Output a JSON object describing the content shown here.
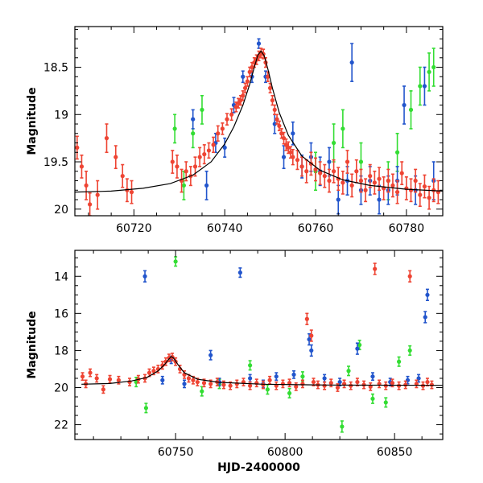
{
  "chart_data": [
    {
      "type": "scatter",
      "xlabel": "",
      "ylabel": "Magnitude",
      "xlim": [
        60707,
        60788
      ],
      "ylim": [
        20.07,
        18.07
      ],
      "y_inverted": true,
      "x_ticks": [
        60720,
        60740,
        60760,
        60780
      ],
      "y_ticks": [
        18.5,
        19,
        19.5,
        20
      ],
      "x_tick_labels": [
        "60720",
        "60740",
        "60760",
        "60780"
      ],
      "y_tick_labels": [
        "18.5",
        "19",
        "19.5",
        "20"
      ],
      "model": {
        "color": "#000000",
        "x": [
          60707,
          60715,
          60722,
          60728,
          60733,
          60737,
          60740,
          60742,
          60744,
          60745.5,
          60746.5,
          60747.3,
          60748,
          60748.7,
          60749.5,
          60750.5,
          60752,
          60754,
          60757,
          60761,
          60766,
          60772,
          60780,
          60788
        ],
        "y": [
          19.82,
          19.81,
          19.78,
          19.73,
          19.64,
          19.5,
          19.31,
          19.13,
          18.9,
          18.68,
          18.5,
          18.37,
          18.33,
          18.38,
          18.52,
          18.72,
          18.98,
          19.22,
          19.44,
          19.59,
          19.69,
          19.75,
          19.79,
          19.81
        ]
      },
      "series": [
        {
          "color": "#ee4433",
          "x": [
            60707.5,
            60708.5,
            60709.5,
            60710.3,
            60712,
            60714,
            60716,
            60717.5,
            60718.5,
            60719.5,
            60728.5,
            60729.5,
            60730.5,
            60731.5,
            60732.5,
            60733.5,
            60734.5,
            60735.5,
            60736.5,
            60737.5,
            60738.5,
            60739.5,
            60740.5,
            60741.5,
            60742.5,
            60743,
            60743.5,
            60744,
            60744.5,
            60745,
            60745.5,
            60746,
            60746.5,
            60747,
            60747.5,
            60748,
            60748.5,
            60749,
            60749.5,
            60750,
            60750.5,
            60751,
            60751.5,
            60752,
            60752.5,
            60753,
            60753.5,
            60754,
            60754.5,
            60755,
            60756,
            60757,
            60758,
            60759,
            60760,
            60761,
            60762,
            60763,
            60764,
            60765,
            60766,
            60767,
            60768,
            60769,
            60770,
            60771,
            60772,
            60773,
            60774,
            60775,
            60776,
            60777,
            60778,
            60779,
            60780,
            60781,
            60782,
            60783,
            60784,
            60785,
            60786,
            60787
          ],
          "y": [
            19.35,
            19.55,
            19.75,
            19.95,
            19.85,
            19.25,
            19.45,
            19.65,
            19.8,
            19.82,
            19.5,
            19.55,
            19.7,
            19.6,
            19.65,
            19.55,
            19.45,
            19.42,
            19.38,
            19.32,
            19.2,
            19.15,
            19.05,
            19.0,
            18.92,
            18.88,
            18.85,
            18.8,
            18.72,
            18.65,
            18.55,
            18.5,
            18.45,
            18.42,
            18.38,
            18.35,
            18.36,
            18.45,
            18.6,
            18.72,
            18.85,
            18.95,
            19.05,
            19.12,
            19.2,
            19.25,
            19.32,
            19.35,
            19.4,
            19.45,
            19.48,
            19.55,
            19.6,
            19.52,
            19.58,
            19.62,
            19.65,
            19.7,
            19.6,
            19.68,
            19.72,
            19.5,
            19.75,
            19.6,
            19.7,
            19.8,
            19.65,
            19.72,
            19.68,
            19.78,
            19.7,
            19.75,
            19.82,
            19.62,
            19.78,
            19.8,
            19.7,
            19.85,
            19.76,
            19.88,
            19.8,
            19.82
          ],
          "err": [
            0.12,
            0.12,
            0.15,
            0.12,
            0.15,
            0.15,
            0.12,
            0.12,
            0.12,
            0.12,
            0.12,
            0.12,
            0.12,
            0.1,
            0.1,
            0.1,
            0.1,
            0.1,
            0.08,
            0.08,
            0.08,
            0.06,
            0.06,
            0.06,
            0.05,
            0.05,
            0.05,
            0.05,
            0.05,
            0.05,
            0.05,
            0.05,
            0.05,
            0.05,
            0.05,
            0.05,
            0.05,
            0.05,
            0.05,
            0.05,
            0.05,
            0.05,
            0.05,
            0.05,
            0.05,
            0.06,
            0.06,
            0.06,
            0.06,
            0.08,
            0.1,
            0.1,
            0.12,
            0.12,
            0.12,
            0.12,
            0.12,
            0.12,
            0.12,
            0.12,
            0.12,
            0.12,
            0.12,
            0.12,
            0.12,
            0.12,
            0.12,
            0.12,
            0.12,
            0.12,
            0.12,
            0.12,
            0.12,
            0.12,
            0.12,
            0.12,
            0.12,
            0.12,
            0.12,
            0.12,
            0.12,
            0.12
          ]
        },
        {
          "color": "#2255cc",
          "x": [
            60733,
            60736,
            60738,
            60740,
            60742,
            60744,
            60746,
            60747.5,
            60749,
            60751,
            60753,
            60755,
            60757,
            60759,
            60761,
            60763,
            60765,
            60767,
            60768,
            60770,
            60772,
            60774,
            60776,
            60778,
            60779.5,
            60782,
            60784,
            60786
          ],
          "y": [
            19.05,
            19.75,
            19.3,
            19.35,
            18.9,
            18.6,
            18.6,
            18.25,
            18.6,
            19.1,
            19.45,
            19.2,
            19.55,
            19.45,
            19.6,
            19.5,
            19.9,
            19.7,
            18.45,
            19.8,
            19.7,
            19.9,
            19.8,
            19.7,
            18.9,
            19.8,
            18.7,
            19.7
          ],
          "err": [
            0.1,
            0.15,
            0.1,
            0.1,
            0.08,
            0.06,
            0.06,
            0.05,
            0.06,
            0.1,
            0.12,
            0.12,
            0.12,
            0.15,
            0.15,
            0.15,
            0.15,
            0.15,
            0.2,
            0.15,
            0.15,
            0.15,
            0.15,
            0.15,
            0.2,
            0.15,
            0.2,
            0.2
          ]
        },
        {
          "color": "#33dd33",
          "x": [
            60729,
            60731,
            60733,
            60735,
            60760,
            60764,
            60766,
            60770,
            60776,
            60778,
            60781,
            60783,
            60785,
            60786
          ],
          "y": [
            19.15,
            19.75,
            19.2,
            18.95,
            19.6,
            19.3,
            19.15,
            19.5,
            19.7,
            19.4,
            18.95,
            18.7,
            18.55,
            18.5
          ],
          "err": [
            0.15,
            0.15,
            0.15,
            0.15,
            0.2,
            0.2,
            0.2,
            0.2,
            0.2,
            0.2,
            0.2,
            0.2,
            0.2,
            0.2
          ]
        }
      ]
    },
    {
      "type": "scatter",
      "xlabel": "HJD-2400000",
      "ylabel": "Magnitude",
      "xlim": [
        60704,
        60872
      ],
      "ylim": [
        22.8,
        12.6
      ],
      "y_inverted": true,
      "x_ticks": [
        60750,
        60800,
        60850
      ],
      "y_ticks": [
        14,
        16,
        18,
        20,
        22
      ],
      "x_tick_labels": [
        "60750",
        "60800",
        "60850"
      ],
      "y_tick_labels": [
        "14",
        "16",
        "18",
        "20",
        "22"
      ],
      "model": {
        "color": "#000000",
        "x": [
          60707,
          60720,
          60730,
          60737,
          60742,
          60745,
          60747,
          60748,
          60749,
          60751,
          60754,
          60760,
          60770,
          60790,
          60820,
          60872
        ],
        "y": [
          19.82,
          19.78,
          19.64,
          19.45,
          19.1,
          18.75,
          18.45,
          18.33,
          18.4,
          18.75,
          19.2,
          19.55,
          19.72,
          19.82,
          19.86,
          19.88
        ]
      },
      "series": [
        {
          "color": "#ee4433",
          "x": [
            60707.5,
            60709,
            60711,
            60714,
            60717,
            60720,
            60724,
            60729,
            60733,
            60736,
            60738,
            60740,
            60742,
            60744,
            60745.5,
            60747,
            60748.5,
            60750,
            60752,
            60754,
            60756,
            60758,
            60760,
            60763,
            60766,
            60769,
            60772,
            60775,
            60778,
            60781,
            60784,
            60787,
            60790,
            60793,
            60796,
            60799,
            60802,
            60805,
            60808,
            60810,
            60812,
            60813,
            60815,
            60818,
            60821,
            60824,
            60827,
            60830,
            60833,
            60836,
            60839,
            60841,
            60843,
            60846,
            60849,
            60852,
            60855,
            60857,
            60860,
            60863,
            60865,
            60867
          ],
          "y": [
            19.4,
            19.8,
            19.2,
            19.5,
            20.1,
            19.55,
            19.6,
            19.7,
            19.55,
            19.5,
            19.2,
            19.1,
            19.0,
            18.8,
            18.6,
            18.4,
            18.35,
            18.6,
            19.0,
            19.3,
            19.5,
            19.6,
            19.7,
            19.75,
            19.8,
            19.7,
            19.85,
            19.9,
            19.8,
            19.7,
            19.9,
            19.75,
            19.85,
            19.6,
            19.9,
            19.8,
            19.75,
            19.95,
            19.8,
            16.3,
            17.2,
            19.7,
            19.85,
            19.9,
            19.75,
            20.0,
            19.8,
            19.9,
            19.7,
            19.85,
            19.95,
            13.6,
            19.8,
            19.9,
            19.75,
            19.9,
            19.85,
            14.0,
            19.8,
            19.9,
            19.7,
            19.85
          ],
          "err": [
            0.2,
            0.2,
            0.2,
            0.2,
            0.2,
            0.2,
            0.2,
            0.2,
            0.2,
            0.2,
            0.2,
            0.2,
            0.2,
            0.2,
            0.2,
            0.2,
            0.2,
            0.2,
            0.2,
            0.2,
            0.2,
            0.2,
            0.2,
            0.2,
            0.2,
            0.2,
            0.2,
            0.2,
            0.2,
            0.2,
            0.2,
            0.2,
            0.2,
            0.2,
            0.2,
            0.2,
            0.2,
            0.2,
            0.2,
            0.3,
            0.3,
            0.2,
            0.2,
            0.2,
            0.2,
            0.2,
            0.2,
            0.2,
            0.2,
            0.2,
            0.2,
            0.3,
            0.2,
            0.2,
            0.2,
            0.2,
            0.2,
            0.3,
            0.2,
            0.2,
            0.2,
            0.2
          ]
        },
        {
          "color": "#2255cc",
          "x": [
            60736,
            60744,
            60748,
            60754,
            60766,
            60770,
            60779.5,
            60784,
            60790,
            60796,
            60804,
            60811,
            60812,
            60818,
            60825,
            60833,
            60840,
            60848,
            60856,
            60861,
            60864,
            60865
          ],
          "y": [
            14.0,
            19.6,
            18.5,
            19.8,
            18.25,
            19.7,
            13.8,
            19.5,
            19.8,
            19.4,
            19.3,
            17.4,
            18.0,
            19.5,
            19.7,
            17.9,
            19.4,
            19.7,
            19.6,
            19.5,
            16.2,
            15.0
          ],
          "err": [
            0.3,
            0.2,
            0.2,
            0.2,
            0.25,
            0.2,
            0.25,
            0.2,
            0.2,
            0.2,
            0.2,
            0.3,
            0.3,
            0.2,
            0.2,
            0.3,
            0.2,
            0.2,
            0.2,
            0.2,
            0.3,
            0.3
          ]
        },
        {
          "color": "#33dd33",
          "x": [
            60732,
            60736.5,
            60750,
            60762,
            60770,
            60784,
            60792,
            60802,
            60808,
            60826,
            60829,
            60834,
            60840,
            60846,
            60852,
            60857
          ],
          "y": [
            19.7,
            21.1,
            13.2,
            20.2,
            19.8,
            18.8,
            20.1,
            20.3,
            19.4,
            22.1,
            19.1,
            17.7,
            20.6,
            20.8,
            18.6,
            18.0
          ],
          "err": [
            0.25,
            0.25,
            0.25,
            0.25,
            0.25,
            0.25,
            0.25,
            0.25,
            0.25,
            0.3,
            0.25,
            0.25,
            0.25,
            0.25,
            0.25,
            0.25
          ]
        }
      ]
    }
  ]
}
